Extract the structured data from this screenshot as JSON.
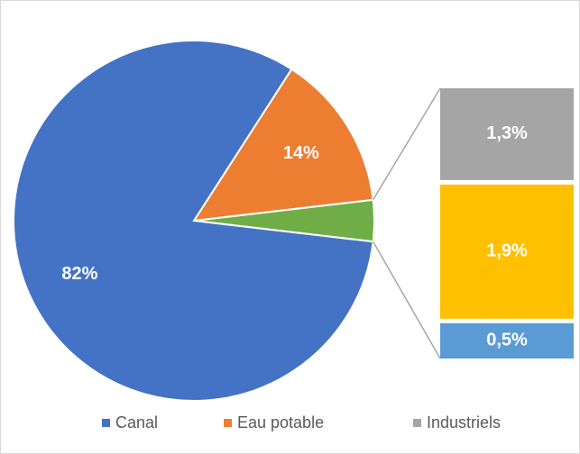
{
  "chart_data": {
    "type": "pie_of_bar",
    "categories": [
      "Canal",
      "Eau potable"
    ],
    "values": [
      82,
      14
    ],
    "value_labels": [
      "82%",
      "14%"
    ],
    "colors": [
      "#4472c4",
      "#ed7d31"
    ],
    "other_color": "#70ad47",
    "bar_segments": [
      {
        "name": "Industriels",
        "value": 1.3,
        "label": "1,3%",
        "color": "#a5a5a5"
      },
      {
        "value": 1.9,
        "label": "1,9%",
        "color": "#ffc000"
      },
      {
        "value": 0.5,
        "label": "0,5%",
        "color": "#5b9bd5"
      }
    ],
    "legend": "bottom"
  }
}
